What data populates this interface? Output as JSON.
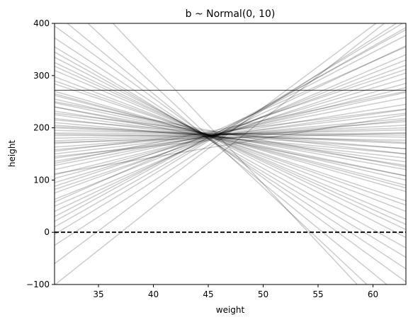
{
  "chart_data": {
    "type": "line",
    "title": "b ~ Normal(0, 10)",
    "xlabel": "weight",
    "ylabel": "height",
    "xlim": [
      31,
      63
    ],
    "ylim": [
      -100,
      400
    ],
    "xticks": [
      35,
      40,
      45,
      50,
      55,
      60
    ],
    "yticks": [
      -100,
      0,
      100,
      200,
      300,
      400
    ],
    "reference_lines": [
      {
        "y": 0,
        "style": "dashed",
        "color": "#000000"
      },
      {
        "y": 272,
        "style": "solid",
        "color": "#000000"
      }
    ],
    "series_style": {
      "color": "#000000",
      "opacity": 0.2
    },
    "grid": false,
    "series": [
      {
        "x": [
          31,
          63
        ],
        "y": [
          -101,
          433
        ]
      },
      {
        "x": [
          31,
          63
        ],
        "y": [
          -60,
          443
        ]
      },
      {
        "x": [
          31,
          63
        ],
        "y": [
          -25,
          412
        ]
      },
      {
        "x": [
          31,
          63
        ],
        "y": [
          -4,
          404
        ]
      },
      {
        "x": [
          31,
          63
        ],
        "y": [
          10,
          392
        ]
      },
      {
        "x": [
          31,
          63
        ],
        "y": [
          21,
          388
        ]
      },
      {
        "x": [
          31,
          63
        ],
        "y": [
          30,
          377
        ]
      },
      {
        "x": [
          31,
          63
        ],
        "y": [
          40,
          357
        ]
      },
      {
        "x": [
          31,
          63
        ],
        "y": [
          50,
          340
        ]
      },
      {
        "x": [
          31,
          63
        ],
        "y": [
          63,
          330
        ]
      },
      {
        "x": [
          31,
          63
        ],
        "y": [
          75,
          320
        ]
      },
      {
        "x": [
          31,
          63
        ],
        "y": [
          82,
          305
        ]
      },
      {
        "x": [
          31,
          63
        ],
        "y": [
          95,
          295
        ]
      },
      {
        "x": [
          31,
          63
        ],
        "y": [
          103,
          285
        ]
      },
      {
        "x": [
          31,
          63
        ],
        "y": [
          110,
          277
        ]
      },
      {
        "x": [
          31,
          63
        ],
        "y": [
          120,
          268
        ]
      },
      {
        "x": [
          31,
          63
        ],
        "y": [
          128,
          258
        ]
      },
      {
        "x": [
          31,
          63
        ],
        "y": [
          136,
          245
        ]
      },
      {
        "x": [
          31,
          63
        ],
        "y": [
          142,
          235
        ]
      },
      {
        "x": [
          31,
          63
        ],
        "y": [
          150,
          228
        ]
      },
      {
        "x": [
          31,
          63
        ],
        "y": [
          158,
          218
        ]
      },
      {
        "x": [
          31,
          63
        ],
        "y": [
          163,
          212
        ]
      },
      {
        "x": [
          31,
          63
        ],
        "y": [
          170,
          205
        ]
      },
      {
        "x": [
          31,
          63
        ],
        "y": [
          175,
          200
        ]
      },
      {
        "x": [
          31,
          63
        ],
        "y": [
          180,
          196
        ]
      },
      {
        "x": [
          31,
          63
        ],
        "y": [
          185,
          190
        ]
      },
      {
        "x": [
          31,
          63
        ],
        "y": [
          190,
          186
        ]
      },
      {
        "x": [
          31,
          63
        ],
        "y": [
          195,
          182
        ]
      },
      {
        "x": [
          31,
          63
        ],
        "y": [
          200,
          170
        ]
      },
      {
        "x": [
          31,
          63
        ],
        "y": [
          205,
          160
        ]
      },
      {
        "x": [
          31,
          63
        ],
        "y": [
          210,
          150
        ]
      },
      {
        "x": [
          31,
          63
        ],
        "y": [
          218,
          142
        ]
      },
      {
        "x": [
          31,
          63
        ],
        "y": [
          225,
          135
        ]
      },
      {
        "x": [
          31,
          63
        ],
        "y": [
          232,
          128
        ]
      },
      {
        "x": [
          31,
          63
        ],
        "y": [
          240,
          120
        ]
      },
      {
        "x": [
          31,
          63
        ],
        "y": [
          248,
          108
        ]
      },
      {
        "x": [
          31,
          63
        ],
        "y": [
          255,
          100
        ]
      },
      {
        "x": [
          31,
          63
        ],
        "y": [
          262,
          90
        ]
      },
      {
        "x": [
          31,
          63
        ],
        "y": [
          270,
          78
        ]
      },
      {
        "x": [
          31,
          63
        ],
        "y": [
          284,
          60
        ]
      },
      {
        "x": [
          31,
          63
        ],
        "y": [
          298,
          40
        ]
      },
      {
        "x": [
          31,
          63
        ],
        "y": [
          310,
          25
        ]
      },
      {
        "x": [
          31,
          63
        ],
        "y": [
          325,
          5
        ]
      },
      {
        "x": [
          31,
          63
        ],
        "y": [
          335,
          -10
        ]
      },
      {
        "x": [
          31,
          63
        ],
        "y": [
          345,
          -30
        ]
      },
      {
        "x": [
          31,
          63
        ],
        "y": [
          355,
          -48
        ]
      },
      {
        "x": [
          31,
          63
        ],
        "y": [
          372,
          -70
        ]
      },
      {
        "x": [
          31,
          63
        ],
        "y": [
          395,
          -95
        ]
      },
      {
        "x": [
          31,
          63
        ],
        "y": [
          420,
          -130
        ]
      },
      {
        "x": [
          31,
          63
        ],
        "y": [
          460,
          -170
        ]
      },
      {
        "x": [
          31,
          63
        ],
        "y": [
          520,
          -200
        ]
      },
      {
        "x": [
          31,
          63
        ],
        "y": [
          112,
          225
        ]
      },
      {
        "x": [
          31,
          63
        ],
        "y": [
          145,
          215
        ]
      },
      {
        "x": [
          31,
          63
        ],
        "y": [
          172,
          190
        ]
      },
      {
        "x": [
          31,
          63
        ],
        "y": [
          188,
          176
        ]
      },
      {
        "x": [
          31,
          63
        ],
        "y": [
          202,
          172
        ]
      },
      {
        "x": [
          31,
          63
        ],
        "y": [
          228,
          150
        ]
      },
      {
        "x": [
          31,
          63
        ],
        "y": [
          250,
          125
        ]
      },
      {
        "x": [
          31,
          63
        ],
        "y": [
          58,
          355
        ]
      },
      {
        "x": [
          31,
          63
        ],
        "y": [
          88,
          312
        ]
      },
      {
        "x": [
          31,
          63
        ],
        "y": [
          132,
          270
        ]
      },
      {
        "x": [
          31,
          63
        ],
        "y": [
          155,
          236
        ]
      },
      {
        "x": [
          31,
          63
        ],
        "y": [
          215,
          160
        ]
      },
      {
        "x": [
          31,
          63
        ],
        "y": [
          240,
          108
        ]
      },
      {
        "x": [
          31,
          63
        ],
        "y": [
          265,
          85
        ]
      },
      {
        "x": [
          31,
          63
        ],
        "y": [
          290,
          52
        ]
      },
      {
        "x": [
          31,
          63
        ],
        "y": [
          318,
          15
        ]
      }
    ]
  }
}
